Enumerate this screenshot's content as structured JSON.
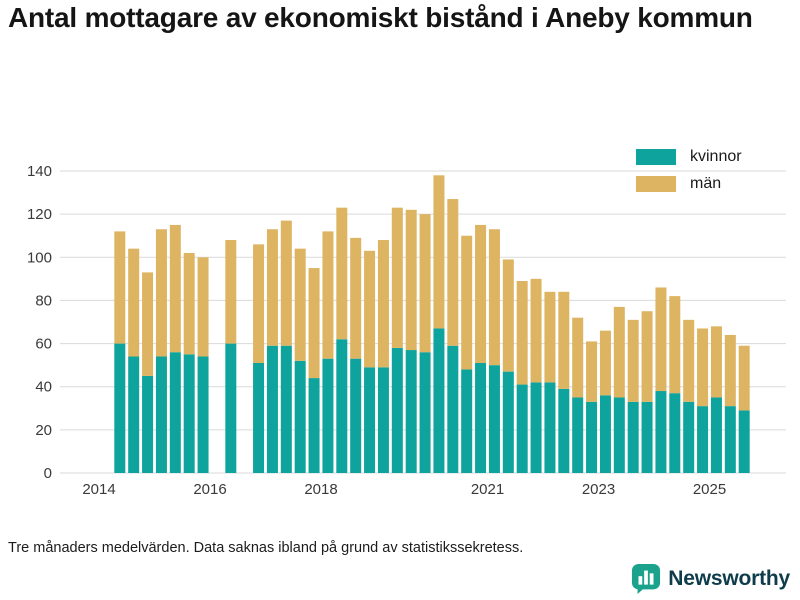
{
  "title": "Antal mottagare av ekonomiskt bistånd i Aneby kommun",
  "footnote": "Tre månaders medelvärden. Data saknas ibland på grund av statistikssekretess.",
  "brand": {
    "name": "Newsworthy",
    "icon": "bar-chart-speech-bubble",
    "color": "#1aa28c",
    "text_color": "#0e3c4a"
  },
  "chart_data": {
    "type": "bar",
    "stacked": true,
    "title": "Antal mottagare av ekonomiskt bistånd i Aneby kommun",
    "xlabel": "",
    "ylabel": "",
    "ylim": [
      0,
      140
    ],
    "yticks": [
      0,
      20,
      40,
      60,
      80,
      100,
      120,
      140
    ],
    "xticks": [
      2014,
      2016,
      2018,
      2021,
      2023,
      2025
    ],
    "grid": true,
    "legend_position": "top-right",
    "x_unit": "quarter (three-month average)",
    "x_start": 2014.375,
    "x_step": 0.25,
    "point_format": [
      "kvinnor",
      "män"
    ],
    "series": [
      {
        "name": "kvinnor",
        "color": "#0ea39c"
      },
      {
        "name": "män",
        "color": "#ddb462"
      }
    ],
    "points": [
      [
        60,
        52
      ],
      [
        54,
        50
      ],
      [
        45,
        48
      ],
      [
        54,
        59
      ],
      [
        56,
        59
      ],
      [
        55,
        47
      ],
      [
        54,
        46
      ],
      null,
      [
        60,
        48
      ],
      null,
      [
        51,
        55
      ],
      [
        59,
        54
      ],
      [
        59,
        58
      ],
      [
        52,
        52
      ],
      [
        44,
        51
      ],
      [
        53,
        59
      ],
      [
        62,
        61
      ],
      [
        53,
        56
      ],
      [
        49,
        54
      ],
      [
        49,
        59
      ],
      [
        58,
        65
      ],
      [
        57,
        65
      ],
      [
        56,
        64
      ],
      [
        67,
        71
      ],
      [
        59,
        68
      ],
      [
        48,
        62
      ],
      [
        51,
        64
      ],
      [
        50,
        63
      ],
      [
        47,
        52
      ],
      [
        41,
        48
      ],
      [
        42,
        48
      ],
      [
        42,
        42
      ],
      [
        39,
        45
      ],
      [
        35,
        37
      ],
      [
        33,
        28
      ],
      [
        36,
        30
      ],
      [
        35,
        42
      ],
      [
        33,
        38
      ],
      [
        33,
        42
      ],
      [
        38,
        48
      ],
      [
        37,
        45
      ],
      [
        33,
        38
      ],
      [
        31,
        36
      ],
      [
        35,
        33
      ],
      [
        31,
        33
      ],
      [
        29,
        30
      ]
    ]
  }
}
